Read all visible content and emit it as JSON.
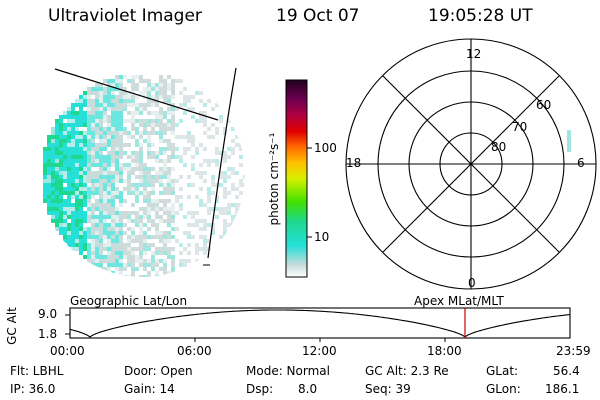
{
  "header": {
    "instrument": "Ultraviolet Imager",
    "date": "19 Oct 07",
    "time": "19:05:28 UT"
  },
  "colorbar": {
    "unit_label": "photon cm⁻²s⁻¹",
    "ticks": [
      "100",
      "10"
    ]
  },
  "polar_plot": {
    "mlt_labels": [
      "12",
      "18",
      "6",
      "0"
    ],
    "lat_labels": [
      "60",
      "70",
      "80"
    ]
  },
  "timeline": {
    "left_label": "Geographic Lat/Lon",
    "right_label": "Apex MLat/MLT",
    "y_axis_label": "GC Alt",
    "y_ticks": [
      "9.0",
      "1.8"
    ],
    "x_ticks": [
      "00:00",
      "06:00",
      "12:00",
      "18:00",
      "23:59"
    ],
    "marker_color": "#cc0000"
  },
  "status": {
    "flt": "Flt: LBHL",
    "ip": "IP: 36.0",
    "door": "Door: Open",
    "gain": "Gain: 14",
    "mode": "Mode: Normal",
    "dsp_label": "Dsp:",
    "dsp_value": "8.0",
    "gc_alt": "GC Alt: 2.3 Re",
    "seq": "Seq: 39",
    "glat_label": "GLat:",
    "glat_value": "56.4",
    "glon_label": "GLon:",
    "glon_value": "186.1"
  }
}
